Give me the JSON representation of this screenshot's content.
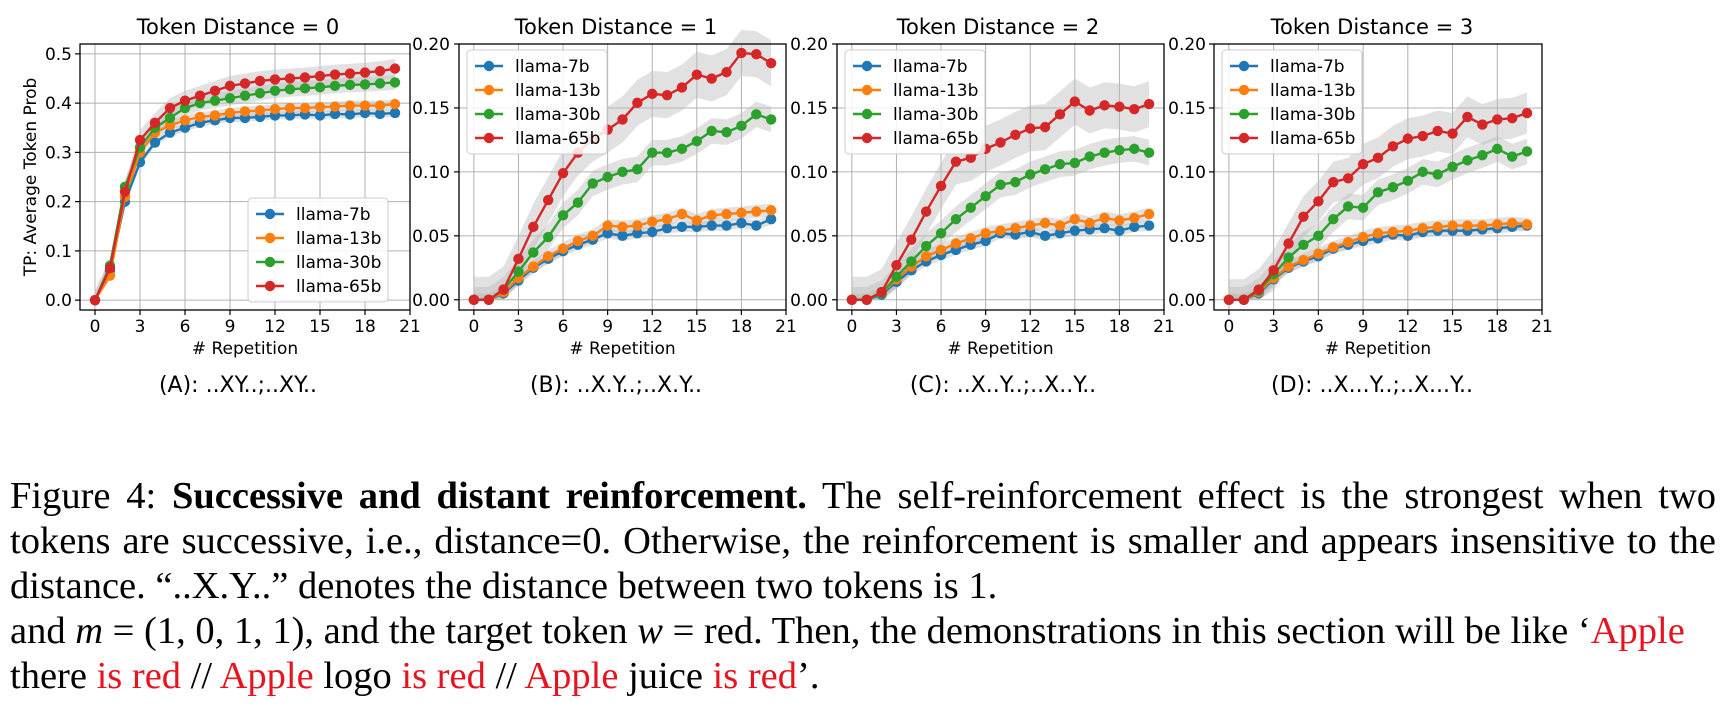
{
  "chart_data": [
    {
      "type": "line",
      "title": "Token Distance = 0",
      "xlabel": "# Repetition",
      "ylabel": "TP: Average Token Prob",
      "ylim": [
        -0.02,
        0.52
      ],
      "xlim": [
        -1,
        21
      ],
      "xticks": [
        0,
        3,
        6,
        9,
        12,
        15,
        18,
        21
      ],
      "yticks": [
        0.0,
        0.1,
        0.2,
        0.3,
        0.4,
        0.5
      ],
      "ytick_labels": [
        "0.0",
        "0.1",
        "0.2",
        "0.3",
        "0.4",
        "0.5"
      ],
      "grid": true,
      "legend_position": "lower-right",
      "sub_caption": "(A): ..XY..;..XY..",
      "x": [
        0,
        1,
        2,
        3,
        4,
        5,
        6,
        7,
        8,
        9,
        10,
        11,
        12,
        13,
        14,
        15,
        16,
        17,
        18,
        19,
        20
      ],
      "series": [
        {
          "name": "llama-7b",
          "color": "#1f77b4",
          "values": [
            0.0,
            0.06,
            0.2,
            0.28,
            0.32,
            0.34,
            0.35,
            0.36,
            0.365,
            0.37,
            0.37,
            0.372,
            0.375,
            0.375,
            0.377,
            0.375,
            0.378,
            0.377,
            0.38,
            0.378,
            0.38
          ],
          "band": 0.008
        },
        {
          "name": "llama-13b",
          "color": "#ff7f0e",
          "values": [
            0.0,
            0.05,
            0.21,
            0.3,
            0.34,
            0.355,
            0.365,
            0.372,
            0.375,
            0.38,
            0.383,
            0.385,
            0.388,
            0.39,
            0.39,
            0.392,
            0.393,
            0.395,
            0.395,
            0.395,
            0.398
          ],
          "band": 0.01
        },
        {
          "name": "llama-30b",
          "color": "#2ca02c",
          "values": [
            0.0,
            0.07,
            0.23,
            0.31,
            0.35,
            0.37,
            0.39,
            0.4,
            0.405,
            0.41,
            0.415,
            0.42,
            0.425,
            0.428,
            0.43,
            0.432,
            0.435,
            0.437,
            0.438,
            0.44,
            0.442
          ],
          "band": 0.015
        },
        {
          "name": "llama-65b",
          "color": "#d62728",
          "values": [
            0.0,
            0.065,
            0.22,
            0.325,
            0.36,
            0.39,
            0.405,
            0.415,
            0.425,
            0.435,
            0.44,
            0.445,
            0.448,
            0.45,
            0.452,
            0.455,
            0.458,
            0.46,
            0.462,
            0.465,
            0.47
          ],
          "band": 0.02
        }
      ]
    },
    {
      "type": "line",
      "title": "Token Distance = 1",
      "xlabel": "# Repetition",
      "ylabel": "",
      "ylim": [
        -0.008,
        0.2
      ],
      "xlim": [
        -1,
        21
      ],
      "xticks": [
        0,
        3,
        6,
        9,
        12,
        15,
        18,
        21
      ],
      "yticks": [
        0.0,
        0.05,
        0.1,
        0.15,
        0.2
      ],
      "ytick_labels": [
        "0.00",
        "0.05",
        "0.10",
        "0.15",
        "0.20"
      ],
      "grid": true,
      "legend_position": "upper-left",
      "sub_caption": "(B): ..X.Y..;..X.Y..",
      "x": [
        0,
        1,
        2,
        3,
        4,
        5,
        6,
        7,
        8,
        9,
        10,
        11,
        12,
        13,
        14,
        15,
        16,
        17,
        18,
        19,
        20
      ],
      "series": [
        {
          "name": "llama-7b",
          "color": "#1f77b4",
          "values": [
            0.0,
            0.0,
            0.005,
            0.015,
            0.025,
            0.032,
            0.038,
            0.043,
            0.047,
            0.052,
            0.05,
            0.052,
            0.053,
            0.056,
            0.057,
            0.057,
            0.058,
            0.058,
            0.06,
            0.058,
            0.063
          ],
          "band": 0.004
        },
        {
          "name": "llama-13b",
          "color": "#ff7f0e",
          "values": [
            0.0,
            0.0,
            0.006,
            0.017,
            0.026,
            0.034,
            0.04,
            0.046,
            0.05,
            0.058,
            0.057,
            0.058,
            0.061,
            0.063,
            0.067,
            0.062,
            0.066,
            0.067,
            0.068,
            0.069,
            0.07
          ],
          "band": 0.005
        },
        {
          "name": "llama-30b",
          "color": "#2ca02c",
          "values": [
            0.0,
            0.0,
            0.008,
            0.022,
            0.037,
            0.049,
            0.066,
            0.076,
            0.091,
            0.096,
            0.1,
            0.102,
            0.115,
            0.115,
            0.118,
            0.124,
            0.132,
            0.131,
            0.136,
            0.145,
            0.141
          ],
          "band": 0.01
        },
        {
          "name": "llama-65b",
          "color": "#d62728",
          "values": [
            0.0,
            0.0,
            0.008,
            0.032,
            0.057,
            0.078,
            0.099,
            0.115,
            0.126,
            0.133,
            0.141,
            0.154,
            0.161,
            0.16,
            0.166,
            0.176,
            0.173,
            0.178,
            0.193,
            0.192,
            0.185
          ],
          "band": 0.018
        }
      ]
    },
    {
      "type": "line",
      "title": "Token Distance = 2",
      "xlabel": "# Repetition",
      "ylabel": "",
      "ylim": [
        -0.008,
        0.2
      ],
      "xlim": [
        -1,
        21
      ],
      "xticks": [
        0,
        3,
        6,
        9,
        12,
        15,
        18,
        21
      ],
      "yticks": [
        0.0,
        0.05,
        0.1,
        0.15,
        0.2
      ],
      "ytick_labels": [
        "0.00",
        "0.05",
        "0.10",
        "0.15",
        "0.20"
      ],
      "grid": true,
      "legend_position": "upper-left",
      "sub_caption": "(C): ..X..Y..;..X..Y..",
      "x": [
        0,
        1,
        2,
        3,
        4,
        5,
        6,
        7,
        8,
        9,
        10,
        11,
        12,
        13,
        14,
        15,
        16,
        17,
        18,
        19,
        20
      ],
      "series": [
        {
          "name": "llama-7b",
          "color": "#1f77b4",
          "values": [
            0.0,
            0.0,
            0.004,
            0.014,
            0.023,
            0.03,
            0.035,
            0.039,
            0.043,
            0.046,
            0.052,
            0.051,
            0.053,
            0.05,
            0.052,
            0.054,
            0.055,
            0.056,
            0.054,
            0.057,
            0.058
          ],
          "band": 0.004
        },
        {
          "name": "llama-13b",
          "color": "#ff7f0e",
          "values": [
            0.0,
            0.0,
            0.005,
            0.016,
            0.026,
            0.034,
            0.039,
            0.044,
            0.048,
            0.052,
            0.054,
            0.056,
            0.058,
            0.06,
            0.058,
            0.063,
            0.06,
            0.064,
            0.062,
            0.064,
            0.067
          ],
          "band": 0.005
        },
        {
          "name": "llama-30b",
          "color": "#2ca02c",
          "values": [
            0.0,
            0.0,
            0.005,
            0.018,
            0.03,
            0.042,
            0.052,
            0.063,
            0.072,
            0.081,
            0.09,
            0.092,
            0.098,
            0.102,
            0.106,
            0.107,
            0.112,
            0.115,
            0.117,
            0.118,
            0.115
          ],
          "band": 0.01
        },
        {
          "name": "llama-65b",
          "color": "#d62728",
          "values": [
            0.0,
            0.0,
            0.006,
            0.027,
            0.047,
            0.069,
            0.089,
            0.108,
            0.111,
            0.118,
            0.123,
            0.129,
            0.134,
            0.135,
            0.145,
            0.155,
            0.148,
            0.152,
            0.151,
            0.149,
            0.153
          ],
          "band": 0.018
        }
      ]
    },
    {
      "type": "line",
      "title": "Token Distance = 3",
      "xlabel": "# Repetition",
      "ylabel": "",
      "ylim": [
        -0.008,
        0.2
      ],
      "xlim": [
        -1,
        21
      ],
      "xticks": [
        0,
        3,
        6,
        9,
        12,
        15,
        18,
        21
      ],
      "yticks": [
        0.0,
        0.05,
        0.1,
        0.15,
        0.2
      ],
      "ytick_labels": [
        "0.00",
        "0.05",
        "0.10",
        "0.15",
        "0.20"
      ],
      "grid": true,
      "legend_position": "upper-left",
      "sub_caption": "(D): ..X...Y..;..X...Y..",
      "x": [
        0,
        1,
        2,
        3,
        4,
        5,
        6,
        7,
        8,
        9,
        10,
        11,
        12,
        13,
        14,
        15,
        16,
        17,
        18,
        19,
        20
      ],
      "series": [
        {
          "name": "llama-7b",
          "color": "#1f77b4",
          "values": [
            0.0,
            0.0,
            0.005,
            0.016,
            0.025,
            0.03,
            0.034,
            0.04,
            0.043,
            0.046,
            0.048,
            0.051,
            0.05,
            0.053,
            0.054,
            0.054,
            0.054,
            0.055,
            0.056,
            0.057,
            0.058
          ],
          "band": 0.004
        },
        {
          "name": "llama-13b",
          "color": "#ff7f0e",
          "values": [
            0.0,
            0.0,
            0.006,
            0.017,
            0.026,
            0.031,
            0.036,
            0.041,
            0.045,
            0.049,
            0.052,
            0.053,
            0.054,
            0.056,
            0.057,
            0.058,
            0.058,
            0.058,
            0.059,
            0.06,
            0.059
          ],
          "band": 0.005
        },
        {
          "name": "llama-30b",
          "color": "#2ca02c",
          "values": [
            0.0,
            0.0,
            0.007,
            0.02,
            0.033,
            0.043,
            0.05,
            0.063,
            0.073,
            0.072,
            0.084,
            0.088,
            0.093,
            0.1,
            0.098,
            0.104,
            0.109,
            0.113,
            0.118,
            0.112,
            0.116
          ],
          "band": 0.01
        },
        {
          "name": "llama-65b",
          "color": "#d62728",
          "values": [
            0.0,
            0.0,
            0.008,
            0.023,
            0.044,
            0.065,
            0.077,
            0.092,
            0.095,
            0.106,
            0.111,
            0.12,
            0.126,
            0.128,
            0.132,
            0.13,
            0.143,
            0.137,
            0.141,
            0.142,
            0.146
          ],
          "band": 0.016
        }
      ]
    }
  ],
  "caption": {
    "figure_label": "Figure 4:",
    "bold_title": "Successive and distant reinforcement.",
    "body": "The self-reinforcement effect is the strongest when two tokens are successive, i.e., distance=0. Otherwise, the reinforcement is smaller and appears insensitive to the distance. “..X.Y..” denotes the distance between two tokens is 1."
  },
  "body_text": {
    "part1": "and ",
    "math_m": "m",
    "math_m_value": " = (1, 0, 1, 1)",
    "part2": ", and the target token ",
    "math_w": "w",
    "math_eq": " = ",
    "target_word": "red",
    "part3": ". Then, the demonstrations in this section will be like ‘",
    "demo_word_1": "Apple",
    "demo_mid_1": " there ",
    "demo_red_1": "is red",
    "sep_1": " // ",
    "demo_word_2": "Apple",
    "demo_mid_2": " logo ",
    "demo_red_2": "is red",
    "sep_2": " // ",
    "demo_word_3": "Apple",
    "demo_mid_3": " juice ",
    "demo_red_3": "is red",
    "end": "’."
  }
}
